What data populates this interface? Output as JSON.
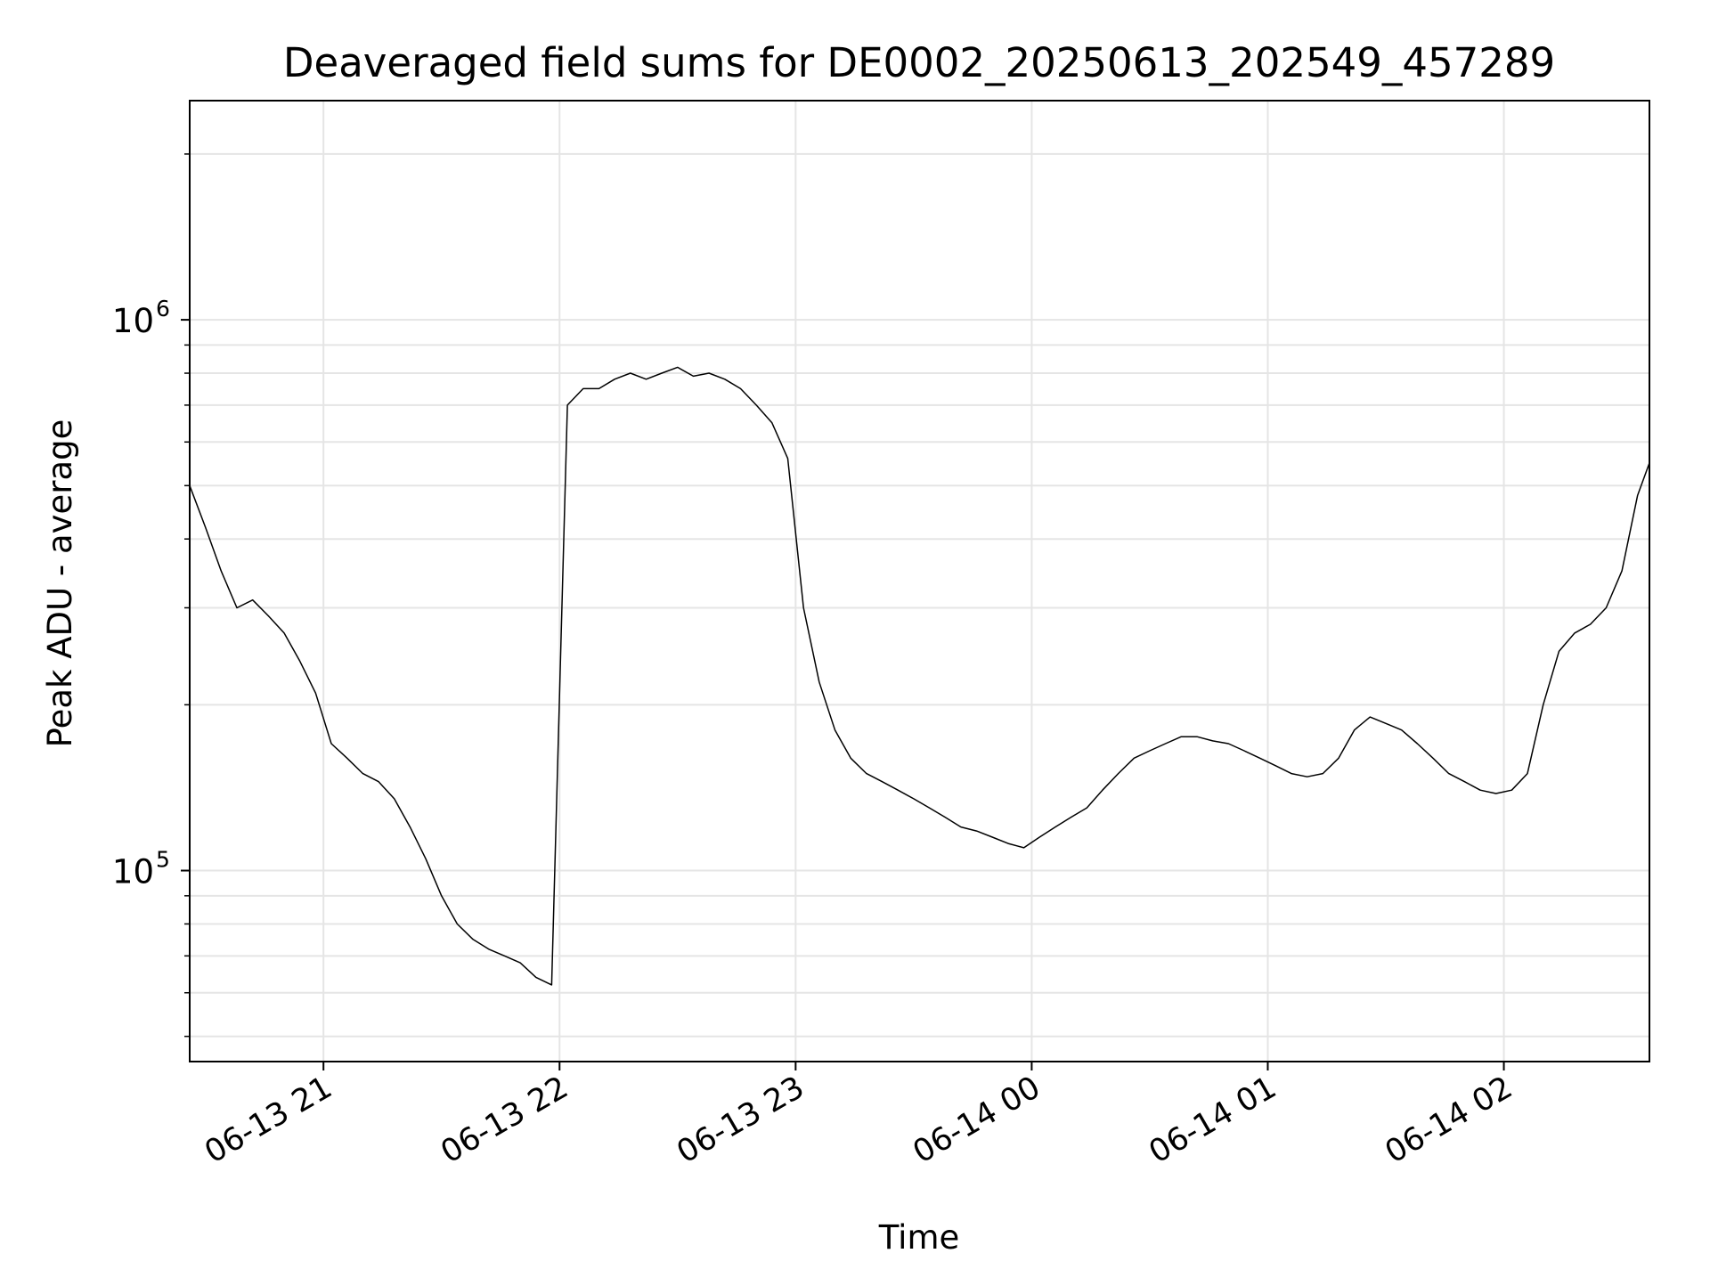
{
  "chart_data": {
    "type": "line",
    "title": "Deaveraged field sums for DE0002_20250613_202549_457289",
    "xlabel": "Time",
    "ylabel": "Peak ADU - average",
    "x_scale": "time",
    "y_scale": "log",
    "xlim": [
      "2025-06-13 20:26",
      "2025-06-14 02:37"
    ],
    "ylim": [
      45000,
      2500000
    ],
    "x_ticks": [
      {
        "value": "2025-06-13 21:00",
        "label": "06-13 21"
      },
      {
        "value": "2025-06-13 22:00",
        "label": "06-13 22"
      },
      {
        "value": "2025-06-13 23:00",
        "label": "06-13 23"
      },
      {
        "value": "2025-06-14 00:00",
        "label": "06-14 00"
      },
      {
        "value": "2025-06-14 01:00",
        "label": "06-14 01"
      },
      {
        "value": "2025-06-14 02:00",
        "label": "06-14 02"
      }
    ],
    "y_ticks": [
      {
        "value": 100000,
        "base": "10",
        "exp": "5"
      },
      {
        "value": 1000000,
        "base": "10",
        "exp": "6"
      }
    ],
    "grid": true,
    "line_color": "#000000",
    "grid_color": "#e5e5e5",
    "series": [
      {
        "x": [
          "2025-06-13 20:26",
          "2025-06-13 20:30",
          "2025-06-13 20:34",
          "2025-06-13 20:38",
          "2025-06-13 20:42",
          "2025-06-13 20:46",
          "2025-06-13 20:50",
          "2025-06-13 20:54",
          "2025-06-13 20:58",
          "2025-06-13 21:02",
          "2025-06-13 21:06",
          "2025-06-13 21:10",
          "2025-06-13 21:14",
          "2025-06-13 21:18",
          "2025-06-13 21:22",
          "2025-06-13 21:26",
          "2025-06-13 21:30",
          "2025-06-13 21:34",
          "2025-06-13 21:38",
          "2025-06-13 21:42",
          "2025-06-13 21:46",
          "2025-06-13 21:50",
          "2025-06-13 21:54",
          "2025-06-13 21:58",
          "2025-06-13 22:02",
          "2025-06-13 22:06",
          "2025-06-13 22:10",
          "2025-06-13 22:14",
          "2025-06-13 22:18",
          "2025-06-13 22:22",
          "2025-06-13 22:26",
          "2025-06-13 22:30",
          "2025-06-13 22:34",
          "2025-06-13 22:38",
          "2025-06-13 22:42",
          "2025-06-13 22:46",
          "2025-06-13 22:50",
          "2025-06-13 22:54",
          "2025-06-13 22:58",
          "2025-06-13 23:02",
          "2025-06-13 23:06",
          "2025-06-13 23:10",
          "2025-06-13 23:14",
          "2025-06-13 23:18",
          "2025-06-13 23:22",
          "2025-06-13 23:26",
          "2025-06-13 23:30",
          "2025-06-13 23:34",
          "2025-06-13 23:38",
          "2025-06-13 23:42",
          "2025-06-13 23:46",
          "2025-06-13 23:50",
          "2025-06-13 23:54",
          "2025-06-13 23:58",
          "2025-06-14 00:02",
          "2025-06-14 00:06",
          "2025-06-14 00:10",
          "2025-06-14 00:14",
          "2025-06-14 00:18",
          "2025-06-14 00:22",
          "2025-06-14 00:26",
          "2025-06-14 00:30",
          "2025-06-14 00:34",
          "2025-06-14 00:38",
          "2025-06-14 00:42",
          "2025-06-14 00:46",
          "2025-06-14 00:50",
          "2025-06-14 00:54",
          "2025-06-14 00:58",
          "2025-06-14 01:02",
          "2025-06-14 01:06",
          "2025-06-14 01:10",
          "2025-06-14 01:14",
          "2025-06-14 01:18",
          "2025-06-14 01:22",
          "2025-06-14 01:26",
          "2025-06-14 01:30",
          "2025-06-14 01:34",
          "2025-06-14 01:38",
          "2025-06-14 01:42",
          "2025-06-14 01:46",
          "2025-06-14 01:50",
          "2025-06-14 01:54",
          "2025-06-14 01:58",
          "2025-06-14 02:02",
          "2025-06-14 02:06",
          "2025-06-14 02:10",
          "2025-06-14 02:14",
          "2025-06-14 02:18",
          "2025-06-14 02:22",
          "2025-06-14 02:26",
          "2025-06-14 02:30",
          "2025-06-14 02:34",
          "2025-06-14 02:37"
        ],
        "y": [
          500000,
          420000,
          350000,
          300000,
          310000,
          290000,
          270000,
          240000,
          210000,
          170000,
          160000,
          150000,
          145000,
          135000,
          120000,
          105000,
          90000,
          80000,
          75000,
          72000,
          70000,
          68000,
          64000,
          62000,
          700000,
          750000,
          750000,
          780000,
          800000,
          780000,
          800000,
          820000,
          790000,
          800000,
          780000,
          750000,
          700000,
          650000,
          560000,
          300000,
          220000,
          180000,
          160000,
          150000,
          145000,
          140000,
          135000,
          130000,
          125000,
          120000,
          118000,
          115000,
          112000,
          110000,
          115000,
          120000,
          125000,
          130000,
          140000,
          150000,
          160000,
          165000,
          170000,
          175000,
          175000,
          172000,
          170000,
          165000,
          160000,
          155000,
          150000,
          148000,
          150000,
          160000,
          180000,
          190000,
          185000,
          180000,
          170000,
          160000,
          150000,
          145000,
          140000,
          138000,
          140000,
          150000,
          200000,
          250000,
          270000,
          280000,
          300000,
          350000,
          480000,
          550000
        ]
      }
    ]
  }
}
